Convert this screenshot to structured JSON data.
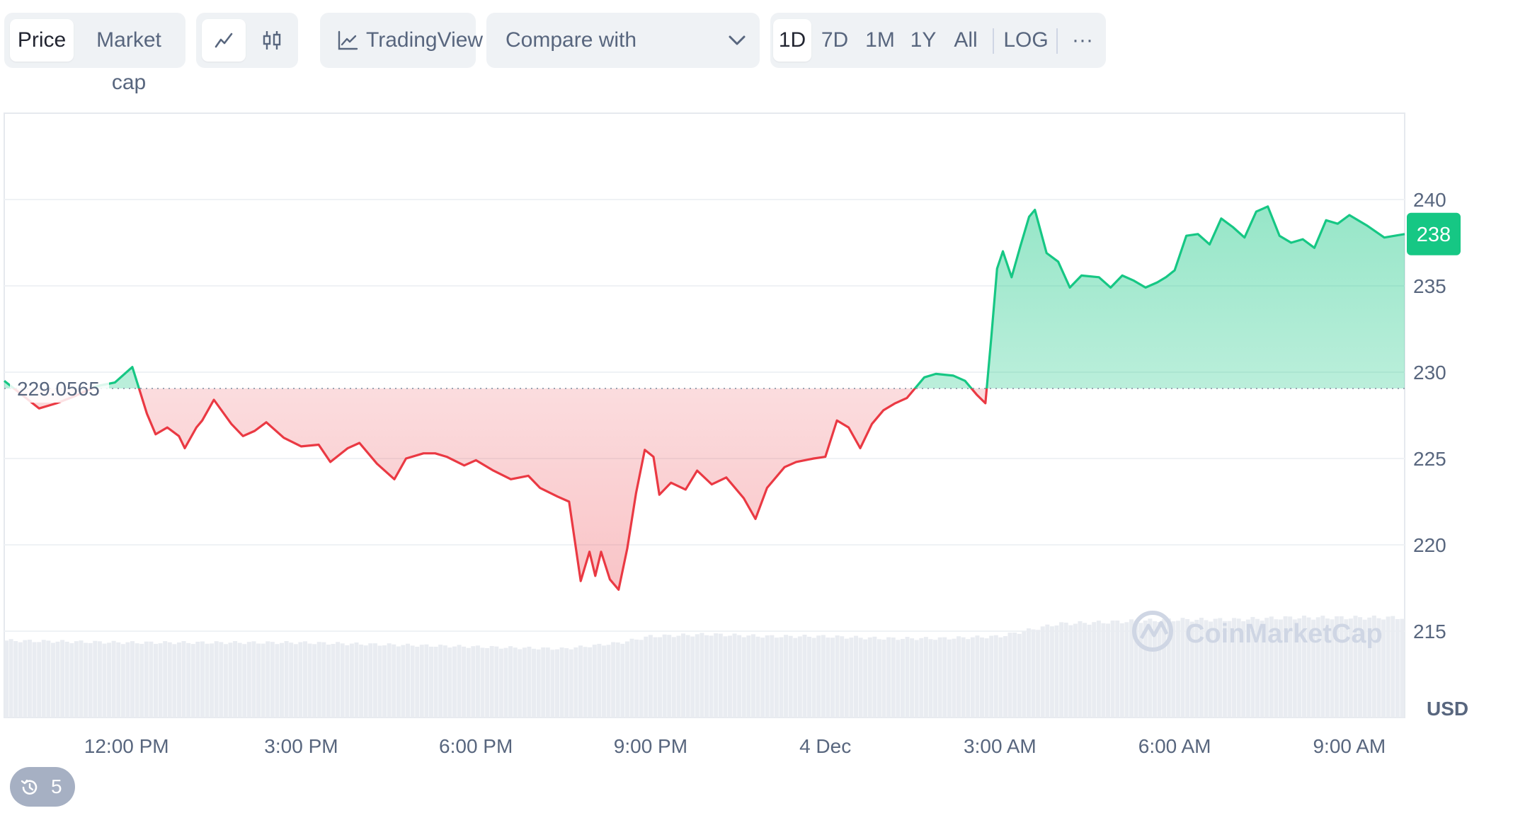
{
  "toolbar": {
    "view_tabs": [
      {
        "label": "Price",
        "active": true
      },
      {
        "label": "Market cap",
        "active": false
      }
    ],
    "chart_style_buttons": [
      {
        "icon": "line-chart-icon",
        "active": true
      },
      {
        "icon": "candlestick-icon",
        "active": false
      }
    ],
    "tradingview": {
      "label": "TradingView",
      "icon": "tradingview-icon"
    },
    "compare": {
      "label": "Compare with",
      "icon": "chevron-down-icon"
    },
    "ranges": [
      {
        "label": "1D",
        "active": true
      },
      {
        "label": "7D",
        "active": false
      },
      {
        "label": "1M",
        "active": false
      },
      {
        "label": "1Y",
        "active": false
      },
      {
        "label": "All",
        "active": false
      }
    ],
    "log_label": "LOG",
    "more_label": "···"
  },
  "colors": {
    "up": "#16c784",
    "down": "#ea3943",
    "grid": "#eff2f5",
    "axis_text": "#58667e",
    "volume": "#e9ecf1",
    "watermark": "#cfd6e4"
  },
  "watermark": "CoinMarketCap",
  "history_badge": {
    "icon": "history-icon",
    "count": "5"
  },
  "chart_data": {
    "type": "line",
    "baseline_value": 229.0565,
    "baseline_label": "229.0565",
    "current_label": "238",
    "currency_label": "USD",
    "ylim": [
      210,
      245
    ],
    "y_ticks": [
      240,
      235,
      230,
      225,
      220,
      215
    ],
    "x_ticks": [
      "12:00 PM",
      "3:00 PM",
      "6:00 PM",
      "9:00 PM",
      "4 Dec",
      "3:00 AM",
      "6:00 AM",
      "9:00 AM"
    ],
    "x_tick_hours": [
      12,
      15,
      18,
      21,
      24,
      27,
      30,
      33
    ],
    "xlim_hours": [
      9.9,
      33.95
    ],
    "grid": true,
    "series": [
      {
        "x_hours": [
          9.9,
          10.2,
          10.5,
          10.8,
          11.1,
          11.5,
          11.8,
          12.1,
          12.35,
          12.5,
          12.7,
          12.9,
          13.0,
          13.2,
          13.3,
          13.5,
          13.8,
          14.0,
          14.2,
          14.4,
          14.7,
          15.0,
          15.3,
          15.5,
          15.8,
          16.0,
          16.3,
          16.6,
          16.8,
          17.1,
          17.3,
          17.5,
          17.8,
          18.0,
          18.3,
          18.6,
          18.9,
          19.1,
          19.4,
          19.6,
          19.8,
          19.95,
          20.05,
          20.15,
          20.3,
          20.45,
          20.6,
          20.75,
          20.9,
          21.05,
          21.15,
          21.35,
          21.6,
          21.8,
          22.05,
          22.3,
          22.6,
          22.8,
          23.0,
          23.3,
          23.5,
          23.8,
          24.0,
          24.2,
          24.4,
          24.6,
          24.8,
          25.0,
          25.2,
          25.4,
          25.7,
          25.9,
          26.2,
          26.4,
          26.6,
          26.75,
          26.85,
          26.95,
          27.05,
          27.2,
          27.35,
          27.5,
          27.6,
          27.8,
          28.0,
          28.2,
          28.4,
          28.7,
          28.9,
          29.1,
          29.3,
          29.5,
          29.7,
          29.85,
          30.0,
          30.2,
          30.4,
          30.6,
          30.8,
          31.0,
          31.2,
          31.4,
          31.6,
          31.8,
          32.0,
          32.2,
          32.4,
          32.6,
          32.8,
          33.0,
          33.3,
          33.6,
          33.95
        ],
        "values": [
          229.5,
          228.7,
          227.9,
          228.2,
          228.6,
          229.2,
          229.4,
          230.3,
          227.6,
          226.4,
          226.8,
          226.3,
          225.6,
          226.8,
          227.2,
          228.4,
          227.0,
          226.3,
          226.6,
          227.1,
          226.2,
          225.7,
          225.8,
          224.8,
          225.6,
          225.9,
          224.7,
          223.8,
          225.0,
          225.3,
          225.3,
          225.1,
          224.6,
          224.9,
          224.3,
          223.8,
          224.0,
          223.3,
          222.8,
          222.5,
          217.9,
          219.6,
          218.2,
          219.6,
          218.0,
          217.4,
          219.8,
          223.0,
          225.5,
          225.1,
          222.9,
          223.6,
          223.2,
          224.3,
          223.5,
          223.9,
          222.7,
          221.5,
          223.3,
          224.5,
          224.8,
          225.0,
          225.1,
          227.2,
          226.8,
          225.6,
          227.0,
          227.8,
          228.2,
          228.5,
          229.7,
          229.9,
          229.8,
          229.5,
          228.7,
          228.2,
          232.0,
          236.0,
          237.0,
          235.5,
          237.3,
          239.0,
          239.4,
          236.9,
          236.4,
          234.9,
          235.6,
          235.5,
          234.9,
          235.6,
          235.3,
          234.9,
          235.2,
          235.5,
          235.9,
          237.9,
          238.0,
          237.4,
          238.9,
          238.4,
          237.8,
          239.3,
          239.6,
          237.9,
          237.5,
          237.7,
          237.2,
          238.8,
          238.6,
          239.1,
          238.5,
          237.8,
          238.0
        ]
      }
    ],
    "volume": {
      "x_hours": [
        9.9,
        12.0,
        15.0,
        18.0,
        19.5,
        20.5,
        21.0,
        22.0,
        23.0,
        24.0,
        25.0,
        26.0,
        27.0,
        28.0,
        29.0,
        30.0,
        31.0,
        32.0,
        33.95
      ],
      "values": [
        0.37,
        0.36,
        0.36,
        0.34,
        0.33,
        0.36,
        0.39,
        0.4,
        0.39,
        0.39,
        0.38,
        0.38,
        0.39,
        0.45,
        0.46,
        0.47,
        0.47,
        0.48,
        0.48
      ]
    }
  }
}
